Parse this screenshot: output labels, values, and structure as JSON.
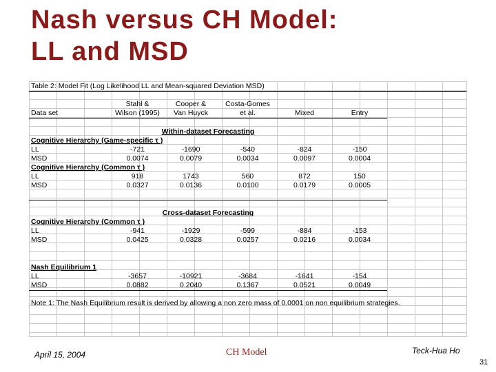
{
  "title_line1": "Nash versus CH Model:",
  "title_line2": "LL and MSD",
  "table": {
    "caption": "Table 2: Model Fit (Log Likelihood LL and Mean-squared Deviation MSD)",
    "header_top": [
      "Stahl &",
      "Cooper &",
      "Costa-Gomes"
    ],
    "header_bottom": [
      "Data set",
      "Wilson (1995)",
      "Van Huyck",
      "et al.",
      "Mixed",
      "Entry"
    ],
    "within_title": "Within-dataset Forecasting",
    "ch_game_title": "Cognitive Hierarchy (Game-specific τ )",
    "ch_game_ll": [
      "LL",
      "-721",
      "-1690",
      "-540",
      "-824",
      "-150"
    ],
    "ch_game_msd": [
      "MSD",
      "0.0074",
      "0.0079",
      "0.0034",
      "0.0097",
      "0.0004"
    ],
    "ch_common_title": "Cognitive Hierarchy (Common τ )",
    "ch_common_ll": [
      "LL",
      "918",
      "1743",
      "560",
      "872",
      "150"
    ],
    "ch_common_msd": [
      "MSD",
      "0.0327",
      "0.0136",
      "0.0100",
      "0.0179",
      "0.0005"
    ],
    "cross_title": "Cross-dataset Forecasting",
    "cross_ch_title": "Cognitive Hierarchy (Common τ )",
    "cross_ll": [
      "LL",
      "-941",
      "-1929",
      "-599",
      "-884",
      "-153"
    ],
    "cross_msd": [
      "MSD",
      "0.0425",
      "0.0328",
      "0.0257",
      "0.0216",
      "0.0034"
    ],
    "nash_title": "Nash Equilibrium 1",
    "nash_ll": [
      "LL",
      "-3657",
      "-10921",
      "-3684",
      "-1641",
      "-154"
    ],
    "nash_msd": [
      "MSD",
      "0.0882",
      "0.2040",
      "0.1367",
      "0.0521",
      "0.0049"
    ],
    "note": "Note 1: The Nash Equilibrium result is derived by allowing a non zero mass of 0.0001 on non equilibrium strategies."
  },
  "footer": {
    "date": "April 15, 2004",
    "center": "CH Model",
    "author": "Teck-Hua Ho",
    "page": "31"
  }
}
